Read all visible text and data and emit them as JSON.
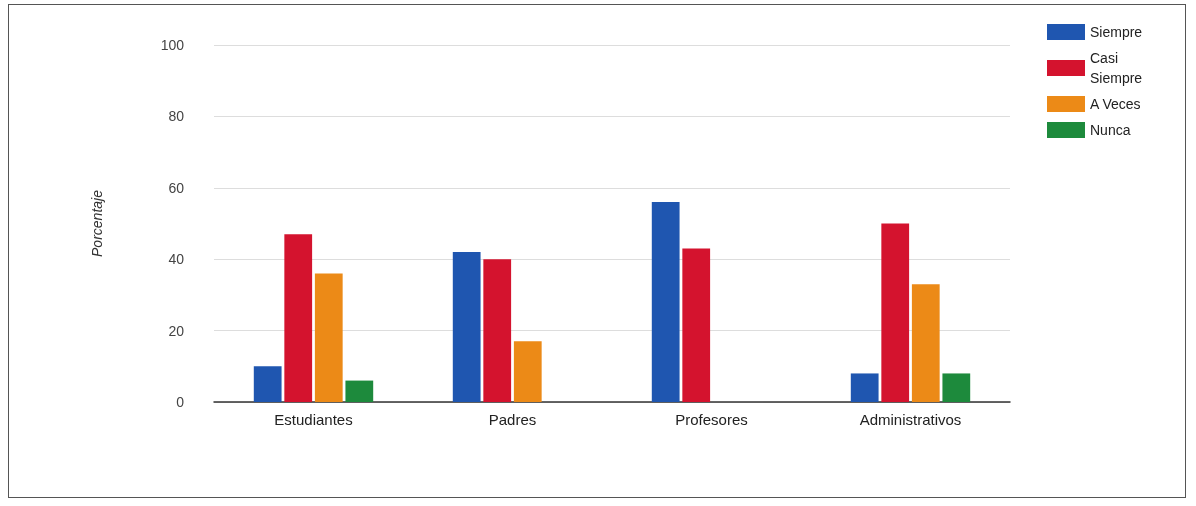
{
  "chart_data": {
    "type": "bar",
    "ylabel": "Porcentaje",
    "categories": [
      "Estudiantes",
      "Padres",
      "Profesores",
      "Administrativos"
    ],
    "series": [
      {
        "name": "Siempre",
        "color": "#1f56b0",
        "values": [
          10,
          42,
          56,
          8
        ]
      },
      {
        "name": "Casi Siempre",
        "color": "#d4132e",
        "values": [
          47,
          40,
          43,
          50
        ]
      },
      {
        "name": "A Veces",
        "color": "#ec8a17",
        "values": [
          36,
          17,
          0,
          33
        ]
      },
      {
        "name": "Nunca",
        "color": "#1d8a3c",
        "values": [
          6,
          0,
          0,
          8
        ]
      }
    ],
    "ylim": [
      0,
      100
    ],
    "yticks": [
      0,
      20,
      40,
      60,
      80,
      100
    ],
    "grid": "y",
    "legend": "top right"
  }
}
